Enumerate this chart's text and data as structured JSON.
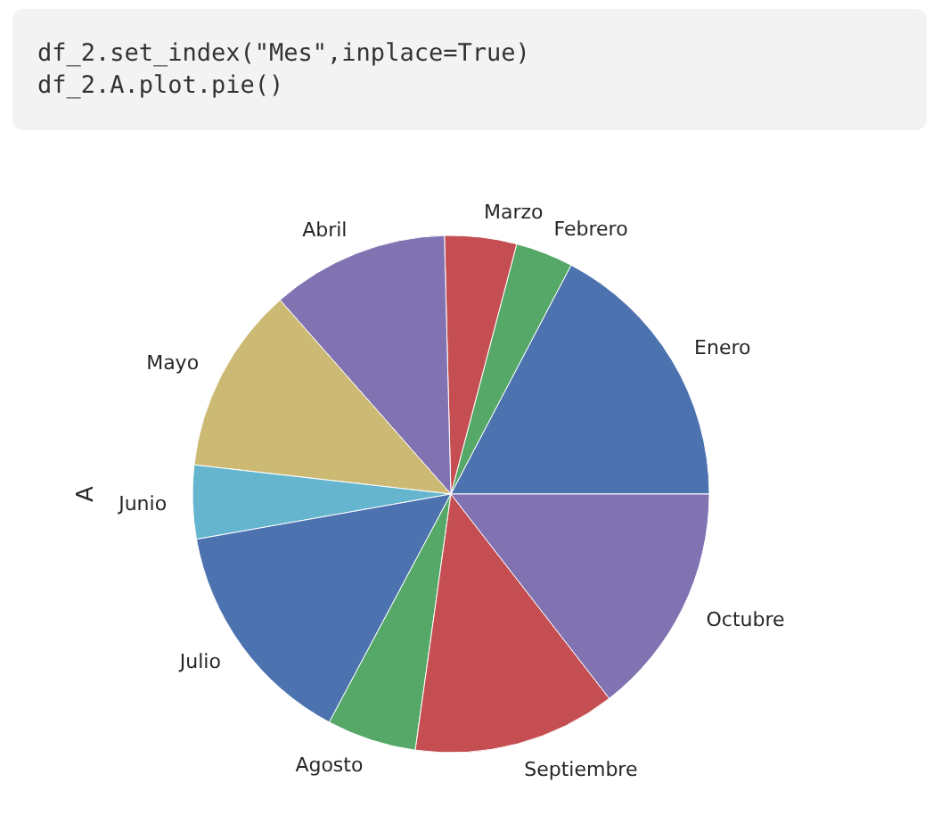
{
  "chart_data": {
    "type": "pie",
    "ylabel": "A",
    "annotations": [
      "df_2.set_index(\"Mes\",inplace=True)",
      "df_2.A.plot.pie()"
    ],
    "categories": [
      "Enero",
      "Febrero",
      "Marzo",
      "Abril",
      "Mayo",
      "Junio",
      "Julio",
      "Agosto",
      "Septiembre",
      "Octubre"
    ],
    "values": [
      17.3,
      3.6,
      4.5,
      11.1,
      11.7,
      4.6,
      14.4,
      5.6,
      12.7,
      14.5
    ],
    "colors": [
      "#4c72b0",
      "#55a868",
      "#c44e52",
      "#8172b2",
      "#ccb974",
      "#64b5cd",
      "#4c72b0",
      "#55a868",
      "#c44e52",
      "#8172b2"
    ],
    "legend": false
  }
}
